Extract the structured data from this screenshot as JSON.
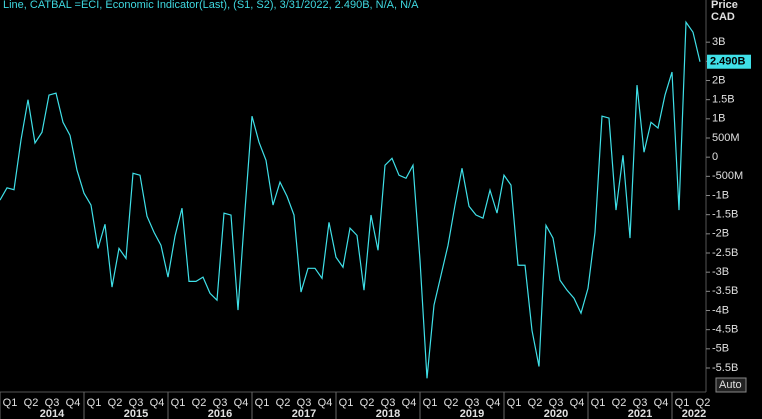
{
  "chart_data": {
    "type": "line",
    "title": "Line, CATBAL =ECI, Economic Indicator(Last), (S1, S2), 3/31/2022, 2.490B, N/A, N/A",
    "axis_title": "Price",
    "currency": "CAD",
    "last_value": 2.49,
    "last_value_label": "2.490B",
    "auto_button": "Auto",
    "quarters": [
      "Q1",
      "Q2",
      "Q3",
      "Q4",
      "Q1",
      "Q2",
      "Q3",
      "Q4",
      "Q1",
      "Q2",
      "Q3",
      "Q4",
      "Q1",
      "Q2",
      "Q3",
      "Q4",
      "Q1",
      "Q2",
      "Q3",
      "Q4",
      "Q1",
      "Q2",
      "Q3",
      "Q4",
      "Q1",
      "Q2",
      "Q3",
      "Q4",
      "Q1",
      "Q2",
      "Q3",
      "Q4",
      "Q1",
      "Q2"
    ],
    "years": [
      "2014",
      "2015",
      "2016",
      "2017",
      "2018",
      "2019",
      "2020",
      "2021",
      "2022"
    ],
    "series": [
      {
        "name": "CATBAL",
        "color": "#3fe0e8",
        "values": [
          -1.12,
          -0.8,
          -0.85,
          0.45,
          1.5,
          0.37,
          0.65,
          1.62,
          1.67,
          0.91,
          0.57,
          -0.34,
          -0.94,
          -1.25,
          -2.38,
          -1.75,
          -3.39,
          -2.38,
          -2.64,
          -0.42,
          -0.47,
          -1.54,
          -1.96,
          -2.3,
          -3.13,
          -2.06,
          -1.33,
          -3.24,
          -3.24,
          -3.13,
          -3.55,
          -3.73,
          -1.46,
          -1.51,
          -3.99,
          -1.38,
          1.07,
          0.39,
          -0.08,
          -1.25,
          -0.65,
          -1.02,
          -1.51,
          -3.52,
          -2.9,
          -2.9,
          -3.16,
          -1.7,
          -2.61,
          -2.87,
          -1.85,
          -2.04,
          -3.47,
          -1.51,
          -2.43,
          -0.21,
          -0.03,
          -0.47,
          -0.55,
          -0.21,
          -2.69,
          -5.77,
          -3.86,
          -3.08,
          -2.3,
          -1.25,
          -0.29,
          -1.28,
          -1.51,
          -1.59,
          -0.86,
          -1.46,
          -0.47,
          -0.73,
          -2.82,
          -2.82,
          -4.52,
          -5.46,
          -1.78,
          -2.11,
          -3.21,
          -3.47,
          -3.68,
          -4.07,
          -3.42,
          -1.96,
          1.07,
          1.02,
          -1.38,
          0.05,
          -2.11,
          1.88,
          0.13,
          0.91,
          0.76,
          1.62,
          2.22,
          -1.38,
          3.52,
          3.26,
          2.49
        ]
      }
    ],
    "ylim": [
      -6.1,
      4.1
    ],
    "yticks": [
      {
        "value": 3,
        "label": "3B"
      },
      {
        "value": 2.5,
        "label": "2.5B"
      },
      {
        "value": 2,
        "label": "2B"
      },
      {
        "value": 1.5,
        "label": "1.5B"
      },
      {
        "value": 1,
        "label": "1B"
      },
      {
        "value": 0.5,
        "label": "500M"
      },
      0,
      {
        "value": -0.5,
        "label": "-500M"
      },
      {
        "value": -1,
        "label": "-1B"
      },
      {
        "value": -1.5,
        "label": "-1.5B"
      },
      {
        "value": -2,
        "label": "-2B"
      },
      {
        "value": -2.5,
        "label": "-2.5B"
      },
      {
        "value": -3,
        "label": "-3B"
      },
      {
        "value": -3.5,
        "label": "-3.5B"
      },
      {
        "value": -4,
        "label": "-4B"
      },
      {
        "value": -4.5,
        "label": "-4.5B"
      },
      {
        "value": -5,
        "label": "-5B"
      },
      {
        "value": -5.5,
        "label": "-5.5B"
      }
    ]
  }
}
